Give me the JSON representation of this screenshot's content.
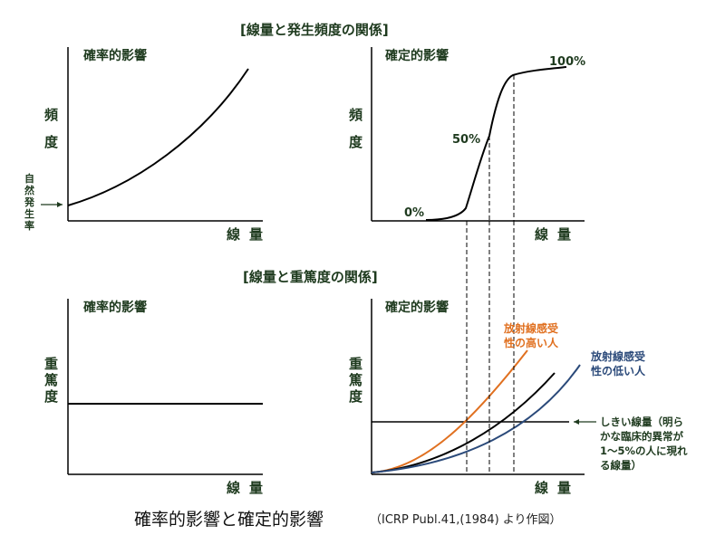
{
  "sections": {
    "frequency": "[線量と発生頻度の関係]",
    "severity": "[線量と重篤度の関係]"
  },
  "panels": {
    "stochastic": "確率的影響",
    "deterministic": "確定的影響"
  },
  "axes": {
    "frequency": [
      "頻",
      "度"
    ],
    "severity": [
      "重",
      "篤",
      "度"
    ],
    "dose": "線量"
  },
  "annotations": {
    "natural_occurrence": [
      "自",
      "然",
      "発",
      "生",
      "率"
    ],
    "p0": "0%",
    "p50": "50%",
    "p100": "100%",
    "high_sensitivity": [
      "放射線感受",
      "性の高い人"
    ],
    "low_sensitivity": [
      "放射線感受",
      "性の低い人"
    ],
    "threshold": [
      "しきい線量（明ら",
      "かな臨床的異常が",
      "1〜5%の人に現れ",
      "る線量）"
    ]
  },
  "caption": {
    "main": "確率的影響と確定的影響",
    "source": "（ICRP Publ.41,(1984) より作図）"
  },
  "colors": {
    "ink": "#000000",
    "label": "#1e3a1e",
    "high_sensitivity": "#e07020",
    "low_sensitivity": "#2b4a7a"
  }
}
